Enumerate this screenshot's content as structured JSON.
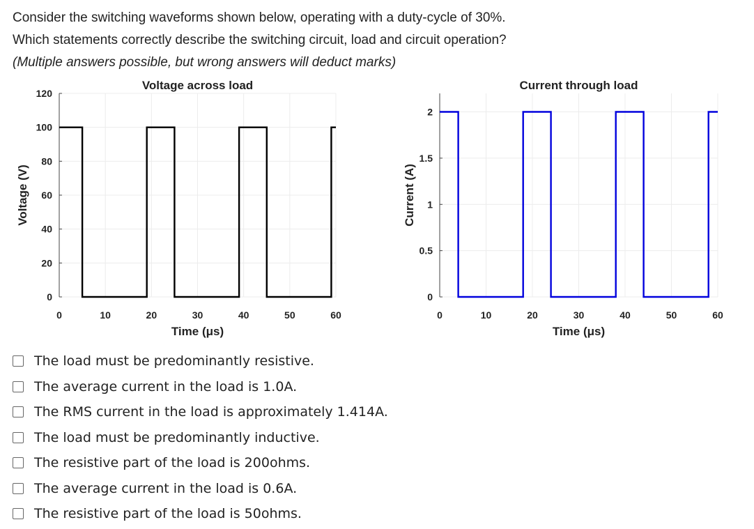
{
  "question": {
    "line1": "Consider the switching waveforms shown below, operating with a duty-cycle of 30%.",
    "line2": "Which statements correctly describe the switching circuit, load and circuit operation?",
    "line3": "(Multiple answers possible, but wrong answers will deduct marks)"
  },
  "chart_data": [
    {
      "type": "line",
      "title": "Voltage across load",
      "xlabel": "Time (μs)",
      "ylabel": "Voltage (V)",
      "xlim": [
        0,
        60
      ],
      "ylim": [
        0,
        120
      ],
      "xticks": [
        0,
        10,
        20,
        30,
        40,
        50,
        60
      ],
      "yticks": [
        0,
        20,
        40,
        60,
        80,
        100,
        120
      ],
      "grid": true,
      "color": "#000000",
      "series": [
        {
          "x": [
            0,
            5,
            5,
            19,
            19,
            25,
            25,
            39,
            39,
            45,
            45,
            59,
            59,
            60
          ],
          "y": [
            100,
            100,
            0,
            0,
            100,
            100,
            0,
            0,
            100,
            100,
            0,
            0,
            100,
            100
          ]
        }
      ]
    },
    {
      "type": "line",
      "title": "Current through load",
      "xlabel": "Time (μs)",
      "ylabel": "Current (A)",
      "xlim": [
        0,
        60
      ],
      "ylim": [
        0,
        2.2
      ],
      "xticks": [
        0,
        10,
        20,
        30,
        40,
        50,
        60
      ],
      "yticks": [
        0,
        0.5,
        1,
        1.5,
        2
      ],
      "grid": true,
      "color": "#0000dd",
      "series": [
        {
          "x": [
            0,
            4,
            4,
            18,
            18,
            24,
            24,
            38,
            38,
            44,
            44,
            58,
            58,
            60
          ],
          "y": [
            2,
            2,
            0,
            0,
            2,
            2,
            0,
            0,
            2,
            2,
            0,
            0,
            2,
            2
          ]
        }
      ]
    }
  ],
  "options": [
    "The load must be predominantly resistive.",
    "The average current in the load is 1.0A.",
    "The RMS current in the load is approximately 1.414A.",
    "The load must be predominantly inductive.",
    "The resistive part of the load is 200ohms.",
    "The average current in the load is 0.6A.",
    "The resistive part of the load is 50ohms."
  ]
}
